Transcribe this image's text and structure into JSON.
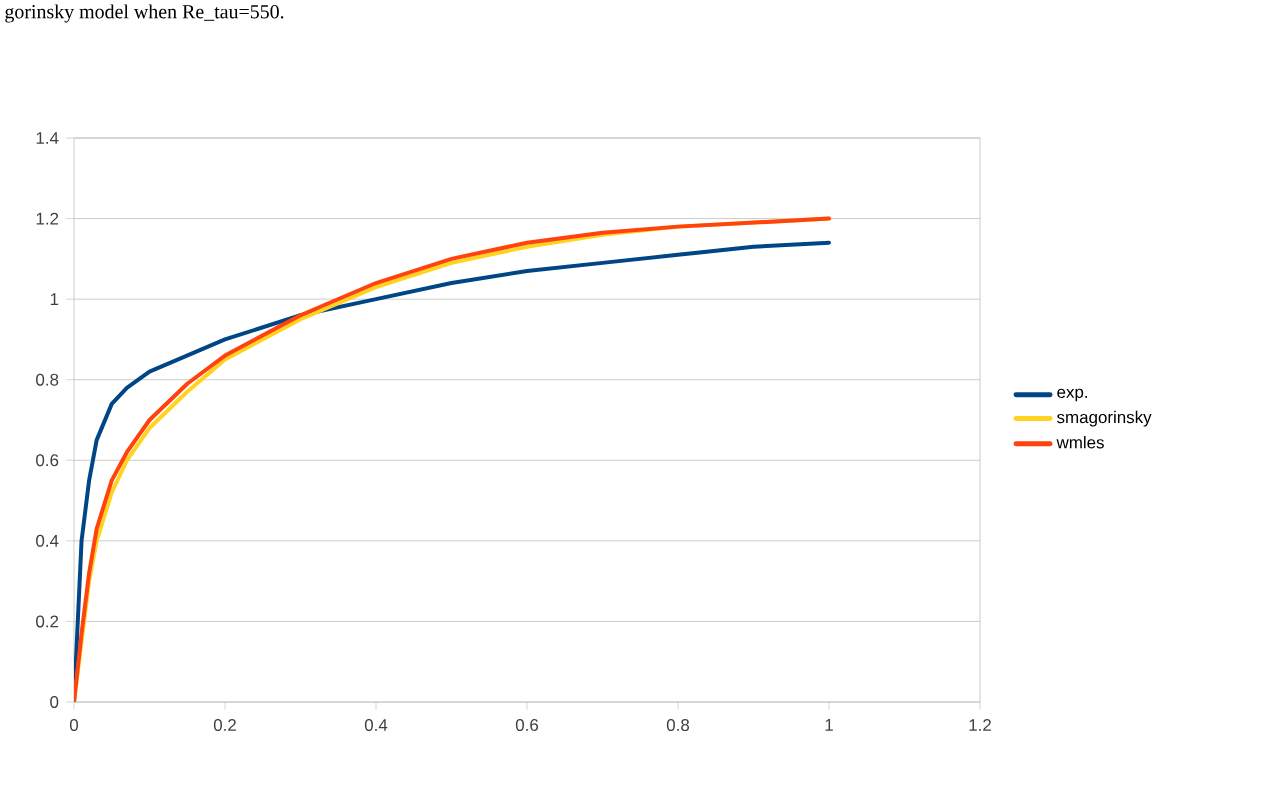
{
  "chart_data": {
    "type": "line",
    "title": "gorinsky model when Re_tau=550.",
    "xlim": [
      0,
      1.2
    ],
    "xticks": [
      0,
      0.2,
      0.4,
      0.6,
      0.8,
      1,
      1.2
    ],
    "ylim": [
      0,
      1.4
    ],
    "yticks": [
      0,
      0.2,
      0.4,
      0.6,
      0.8,
      1,
      1.2,
      1.4
    ],
    "grid": "y",
    "legend": "right",
    "marker": "none",
    "line_style": "solid",
    "series": [
      {
        "name": "exp.",
        "color": "#004586",
        "x": [
          0,
          0.005,
          0.01,
          0.02,
          0.03,
          0.05,
          0.07,
          0.1,
          0.15,
          0.2,
          0.3,
          0.4,
          0.5,
          0.6,
          0.7,
          0.8,
          0.9,
          1.0
        ],
        "values": [
          0,
          0.2,
          0.4,
          0.55,
          0.65,
          0.74,
          0.78,
          0.82,
          0.86,
          0.9,
          0.96,
          1.0,
          1.04,
          1.07,
          1.09,
          1.11,
          1.13,
          1.14
        ]
      },
      {
        "name": "smagorinsky",
        "color": "#ffd320",
        "x": [
          0,
          0.01,
          0.02,
          0.03,
          0.05,
          0.07,
          0.1,
          0.15,
          0.2,
          0.3,
          0.4,
          0.5,
          0.6,
          0.7,
          0.8,
          0.9,
          1.0
        ],
        "values": [
          0,
          0.15,
          0.3,
          0.4,
          0.52,
          0.6,
          0.68,
          0.77,
          0.85,
          0.95,
          1.03,
          1.09,
          1.13,
          1.16,
          1.18,
          1.19,
          1.2
        ]
      },
      {
        "name": "wmles",
        "color": "#ff420e",
        "x": [
          0,
          0.01,
          0.02,
          0.03,
          0.05,
          0.07,
          0.1,
          0.15,
          0.2,
          0.3,
          0.4,
          0.5,
          0.6,
          0.7,
          0.8,
          0.9,
          1.0
        ],
        "values": [
          0,
          0.17,
          0.32,
          0.43,
          0.55,
          0.62,
          0.7,
          0.79,
          0.86,
          0.96,
          1.04,
          1.1,
          1.14,
          1.165,
          1.18,
          1.19,
          1.2
        ]
      }
    ]
  }
}
